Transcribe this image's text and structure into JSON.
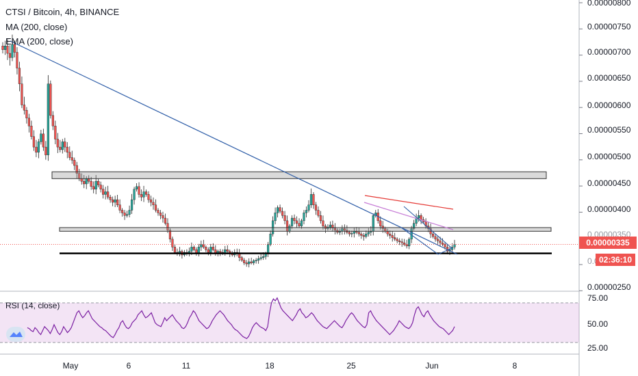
{
  "header": {
    "title": "CTSI / Bitcoin, 4h, BINANCE",
    "indicator1": "MA (200, close)",
    "indicator2": "EMA (200, close)"
  },
  "price_axis": {
    "labels": [
      "0.00000800",
      "0.00000750",
      "0.00000700",
      "0.00000650",
      "0.00000600",
      "0.00000550",
      "0.00000500",
      "0.00000450",
      "0.00000400",
      "0.00000350",
      "0.00000300",
      "0.00000250"
    ],
    "last_price": "0.00000335",
    "countdown": "02:36:10",
    "last_price_color": "#ef5350"
  },
  "time_axis": {
    "labels": [
      "May",
      "6",
      "11",
      "18",
      "25",
      "Jun",
      "8"
    ]
  },
  "rsi": {
    "title": "RSI (14, close)",
    "labels": [
      "75.00",
      "50.00",
      "25.00"
    ],
    "upper": 70,
    "lower": 30,
    "values": [
      45,
      44,
      42,
      41,
      45,
      43,
      40,
      38,
      42,
      46,
      44,
      42,
      39,
      43,
      48,
      44,
      40,
      38,
      41,
      46,
      43,
      40,
      42,
      45,
      50,
      55,
      60,
      62,
      58,
      55,
      57,
      60,
      62,
      58,
      54,
      52,
      50,
      48,
      46,
      45,
      43,
      42,
      40,
      38,
      36,
      35,
      38,
      42,
      45,
      50,
      52,
      48,
      45,
      44,
      46,
      50,
      52,
      54,
      58,
      60,
      62,
      58,
      55,
      56,
      58,
      60,
      55,
      50,
      48,
      47,
      46,
      50,
      55,
      52,
      54,
      56,
      58,
      55,
      52,
      50,
      48,
      45,
      44,
      46,
      50,
      55,
      58,
      62,
      60,
      56,
      52,
      50,
      48,
      46,
      44,
      45,
      48,
      52,
      55,
      58,
      60,
      62,
      60,
      58,
      55,
      52,
      50,
      48,
      45,
      43,
      42,
      40,
      38,
      36,
      35,
      34,
      36,
      40,
      45,
      48,
      50,
      48,
      46,
      45,
      44,
      42,
      46,
      60,
      70,
      74,
      72,
      75,
      70,
      65,
      62,
      60,
      58,
      56,
      54,
      52,
      55,
      58,
      62,
      64,
      60,
      58,
      55,
      56,
      58,
      60,
      58,
      55,
      52,
      50,
      48,
      46,
      45,
      44,
      46,
      48,
      50,
      52,
      50,
      48,
      46,
      45,
      48,
      52,
      55,
      58,
      60,
      58,
      55,
      52,
      50,
      48,
      46,
      45,
      48,
      60,
      62,
      58,
      55,
      52,
      50,
      48,
      46,
      44,
      42,
      40,
      38,
      40,
      42,
      45,
      48,
      52,
      50,
      48,
      46,
      45,
      44,
      46,
      50,
      58,
      64,
      66,
      62,
      58,
      56,
      60,
      62,
      58,
      55,
      52,
      50,
      48,
      46,
      45,
      44,
      42,
      40,
      38,
      40,
      42,
      46
    ]
  },
  "chart_data": {
    "type": "candlestick",
    "title": "CTSI / Bitcoin, 4h, BINANCE",
    "ylim": [
      2.5e-06,
      8.1e-06
    ],
    "xlabel": "",
    "ylabel": "",
    "x_tick_labels": [
      "May",
      "6",
      "11",
      "18",
      "25",
      "Jun",
      "8"
    ],
    "series": [
      {
        "close": [
          7.05e-06,
          7.12e-06,
          6.98e-06,
          6.9e-06,
          7.15e-06,
          7e-06,
          6.7e-06,
          6.4e-06,
          6e-06,
          5.9e-06,
          5.75e-06,
          5.6e-06,
          5.4e-06,
          5.2e-06,
          5.1e-06,
          5.3e-06,
          5.45e-06,
          5.2e-06,
          5.05e-06,
          6.4e-06,
          5.8e-06,
          5.6e-06,
          5.35e-06,
          5.2e-06,
          5.15e-06,
          5.3e-06,
          5.2e-06,
          5.1e-06,
          5e-06,
          4.95e-06,
          4.85e-06,
          4.7e-06,
          4.6e-06,
          4.55e-06,
          4.5e-06,
          4.6e-06,
          4.55e-06,
          4.45e-06,
          4.4e-06,
          4.55e-06,
          4.48e-06,
          4.4e-06,
          4.3e-06,
          4.35e-06,
          4.25e-06,
          4.2e-06,
          4.15e-06,
          4.2e-06,
          4.1e-06,
          4e-06,
          3.95e-06,
          3.9e-06,
          3.92e-06,
          4e-06,
          4.2e-06,
          4.4e-06,
          4.45e-06,
          4.3e-06,
          4.25e-06,
          4.35e-06,
          4.3e-06,
          4.2e-06,
          4.15e-06,
          4.1e-06,
          4e-06,
          3.95e-06,
          3.9e-06,
          3.85e-06,
          3.75e-06,
          3.62e-06,
          3.45e-06,
          3.3e-06,
          3.2e-06,
          3.18e-06,
          3.22e-06,
          3.15e-06,
          3.2e-06,
          3.18e-06,
          3.22e-06,
          3.3e-06,
          3.25e-06,
          3.18e-06,
          3.3e-06,
          3.35e-06,
          3.3e-06,
          3.25e-06,
          3.2e-06,
          3.3e-06,
          3.25e-06,
          3.18e-06,
          3.22e-06,
          3.2e-06,
          3.18e-06,
          3.25e-06,
          3.22e-06,
          3.18e-06,
          3.15e-06,
          3.2e-06,
          3.18e-06,
          3.1e-06,
          3.05e-06,
          3e-06,
          2.98e-06,
          3.02e-06,
          3e-06,
          3.04e-06,
          3.05e-06,
          3.08e-06,
          3.1e-06,
          3.12e-06,
          3.18e-06,
          3.35e-06,
          3.55e-06,
          3.8e-06,
          3.95e-06,
          4.05e-06,
          3.98e-06,
          3.9e-06,
          3.8e-06,
          3.6e-06,
          3.7e-06,
          3.85e-06,
          3.8e-06,
          3.75e-06,
          3.7e-06,
          3.8e-06,
          3.95e-06,
          4e-06,
          4.1e-06,
          4.3e-06,
          4.1e-06,
          4e-06,
          3.9e-06,
          3.8e-06,
          3.7e-06,
          3.65e-06,
          3.68e-06,
          3.72e-06,
          3.66e-06,
          3.62e-06,
          3.58e-06,
          3.6e-06,
          3.65e-06,
          3.62e-06,
          3.58e-06,
          3.55e-06,
          3.56e-06,
          3.6e-06,
          3.58e-06,
          3.55e-06,
          3.52e-06,
          3.5e-06,
          3.55e-06,
          3.58e-06,
          3.6e-06,
          3.9e-06,
          3.95e-06,
          3.8e-06,
          3.7e-06,
          3.65e-06,
          3.6e-06,
          3.55e-06,
          3.52e-06,
          3.48e-06,
          3.45e-06,
          3.42e-06,
          3.4e-06,
          3.38e-06,
          3.35e-06,
          3.32e-06,
          3.45e-06,
          3.65e-06,
          3.75e-06,
          3.85e-06,
          3.9e-06,
          3.82e-06,
          3.78e-06,
          3.7e-06,
          3.65e-06,
          3.55e-06,
          3.5e-06,
          3.45e-06,
          3.42e-06,
          3.38e-06,
          3.35e-06,
          3.3e-06,
          3.22e-06,
          3.25e-06,
          3.3e-06,
          3.35e-06
        ]
      }
    ],
    "annotations": {
      "resistance_zones": [
        [
          4.6e-06,
          4.73e-06
        ],
        [
          3.6e-06,
          3.67e-06
        ]
      ],
      "support_line": 3.18e-06,
      "last_price": 3.35e-06
    }
  }
}
